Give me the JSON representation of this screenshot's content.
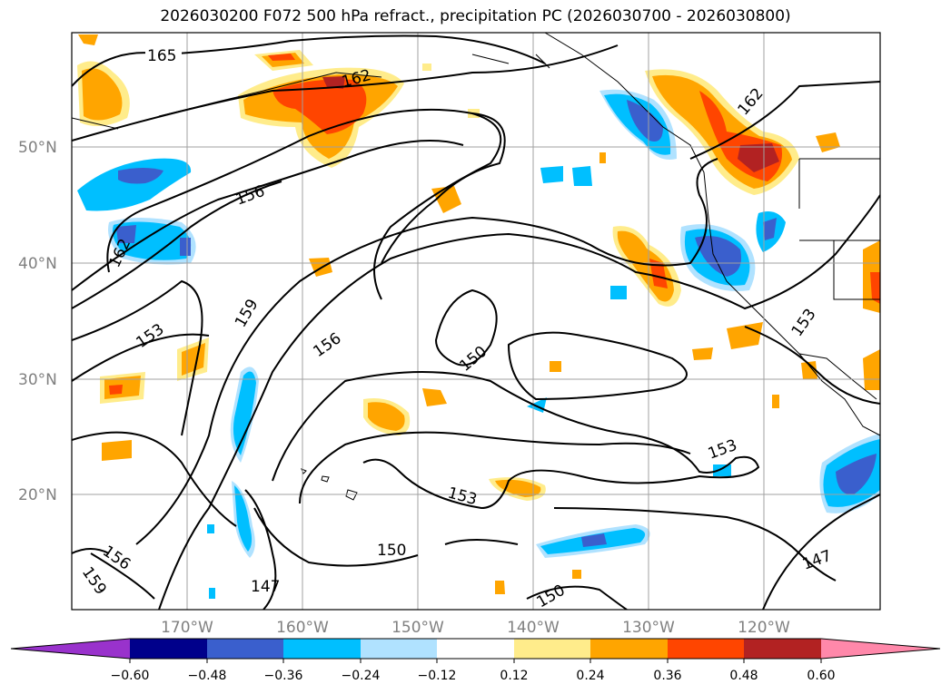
{
  "title": "2026030200 F072 500 hPa refract., precipitation PC (2026030700 - 2026030800)",
  "lat_labels": [
    "50°N",
    "40°N",
    "30°N",
    "20°N"
  ],
  "lon_labels": [
    "170°W",
    "160°W",
    "150°W",
    "140°W",
    "130°W",
    "120°W"
  ],
  "contour_labels": [
    "165",
    "162",
    "162",
    "162",
    "156",
    "159",
    "153",
    "156",
    "150",
    "153",
    "153",
    "153",
    "150",
    "156",
    "159",
    "147",
    "150",
    "147"
  ],
  "colorbar": {
    "ticks": [
      "−0.60",
      "−0.48",
      "−0.36",
      "−0.24",
      "−0.12",
      "0.12",
      "0.24",
      "0.36",
      "0.48",
      "0.60"
    ],
    "colors": [
      "#9932cc",
      "#00008b",
      "#3a5fcd",
      "#00bfff",
      "#b0e2ff",
      "#ffffff",
      "#ffec8b",
      "#ffa500",
      "#ff4500",
      "#b22222",
      "#ff88aa"
    ]
  },
  "colors": {
    "grid": "#a0a0a0",
    "contour": "#000000",
    "coast": "#000000"
  }
}
